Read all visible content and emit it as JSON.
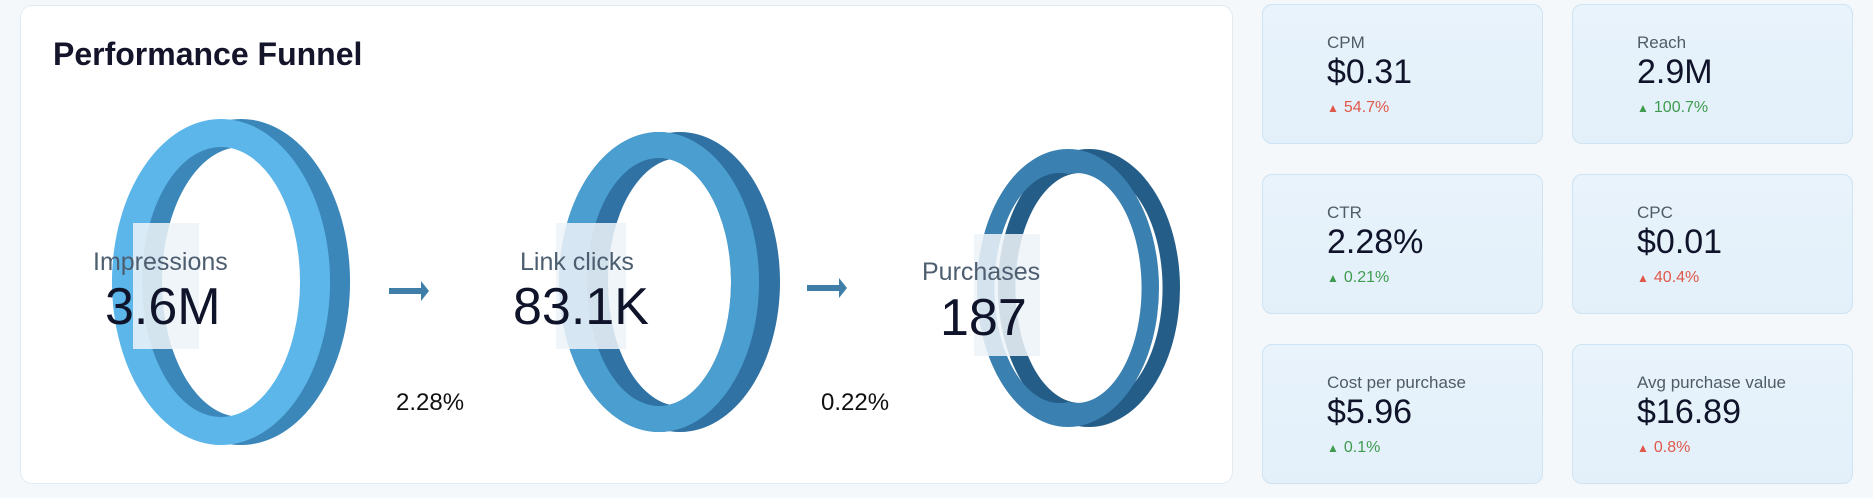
{
  "funnel": {
    "title": "Performance Funnel",
    "stages": [
      {
        "label": "Impressions",
        "value": "3.6M"
      },
      {
        "label": "Link clicks",
        "value": "83.1K"
      },
      {
        "label": "Purchases",
        "value": "187"
      }
    ],
    "rates": [
      "2.28%",
      "0.22%"
    ],
    "colors": {
      "ring1_front": "#5cb6ea",
      "ring1_side": "#3b87ba",
      "ring2_front": "#4a9fd0",
      "ring2_side": "#2f72a3",
      "ring3_front": "#3a80b1",
      "ring3_side": "#245d88",
      "arrow": "#3e7ea8"
    }
  },
  "kpis": [
    {
      "label": "CPM",
      "value": "$0.31",
      "delta": "54.7%",
      "trend": "up",
      "color": "#e0584a"
    },
    {
      "label": "Reach",
      "value": "2.9M",
      "delta": "100.7%",
      "trend": "up",
      "color": "#3f9b4f"
    },
    {
      "label": "CTR",
      "value": "2.28%",
      "delta": "0.21%",
      "trend": "up",
      "color": "#3f9b4f"
    },
    {
      "label": "CPC",
      "value": "$0.01",
      "delta": "40.4%",
      "trend": "up",
      "color": "#e0584a"
    },
    {
      "label": "Cost per purchase",
      "value": "$5.96",
      "delta": "0.1%",
      "trend": "up",
      "color": "#3f9b4f"
    },
    {
      "label": "Avg purchase value",
      "value": "$16.89",
      "delta": "0.8%",
      "trend": "up",
      "color": "#e0584a"
    }
  ]
}
